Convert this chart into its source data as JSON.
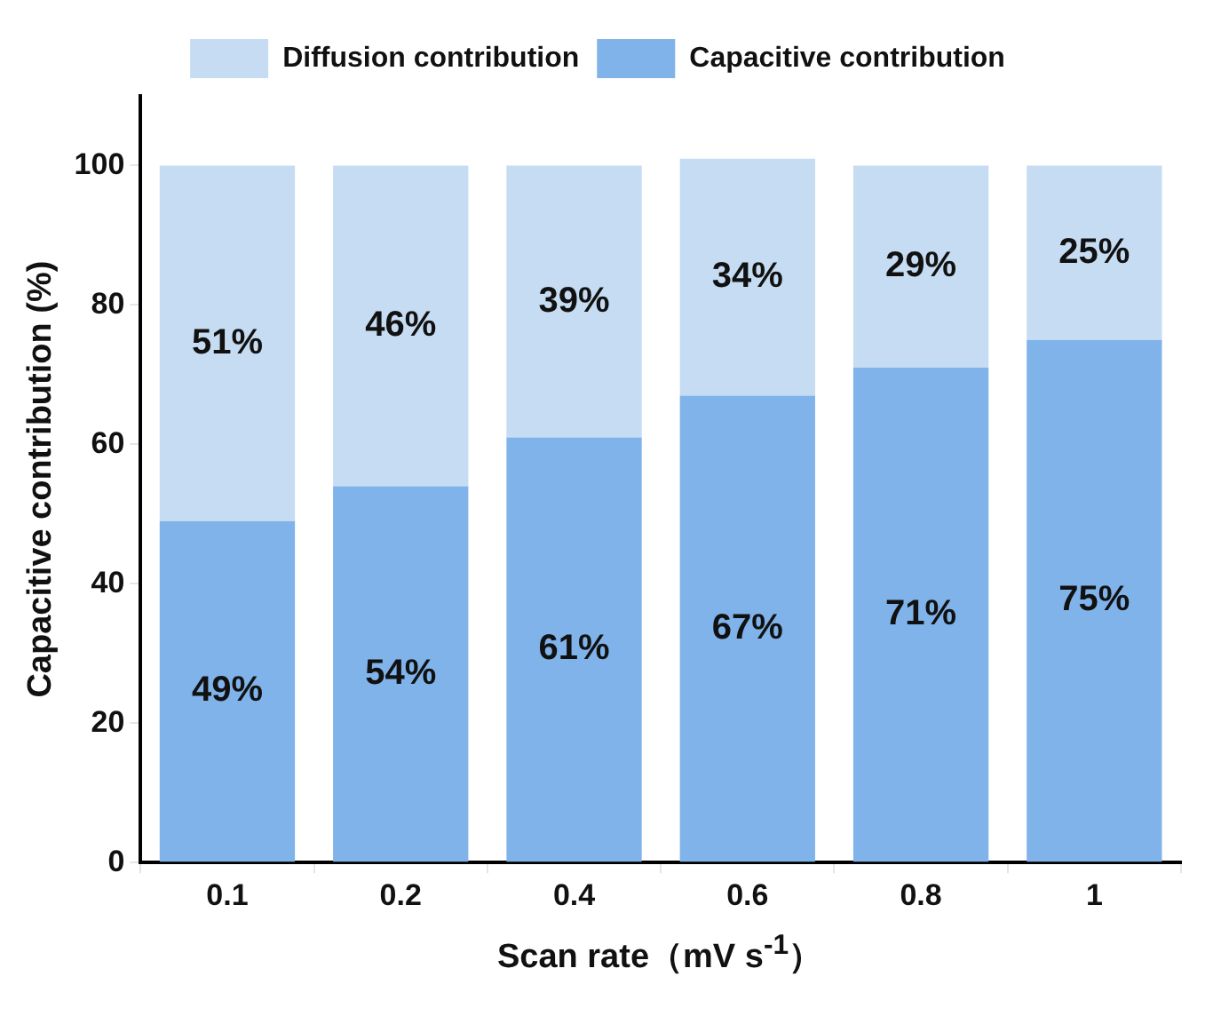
{
  "chart_data": {
    "type": "bar",
    "stacked": true,
    "xlabel": "Scan rate（mV s$^{-1}$）",
    "ylabel": "Capacitive contribution (%)",
    "categories": [
      "0.1",
      "0.2",
      "0.4",
      "0.6",
      "0.8",
      "1"
    ],
    "series": [
      {
        "name": "Capacitive contribution",
        "color": "#7fb3ea",
        "values": [
          49,
          54,
          61,
          67,
          71,
          75
        ],
        "value_labels": [
          "49%",
          "54%",
          "61%",
          "67%",
          "71%",
          "75%"
        ]
      },
      {
        "name": "Diffusion contribution",
        "color": "#c6dcf3",
        "values": [
          51,
          46,
          39,
          34,
          29,
          25
        ],
        "value_labels": [
          "51%",
          "46%",
          "39%",
          "34%",
          "29%",
          "25%"
        ]
      }
    ],
    "ylim": [
      0,
      110
    ],
    "yticks": [
      0,
      20,
      40,
      60,
      80,
      100
    ],
    "grid": false,
    "legend": "top"
  }
}
